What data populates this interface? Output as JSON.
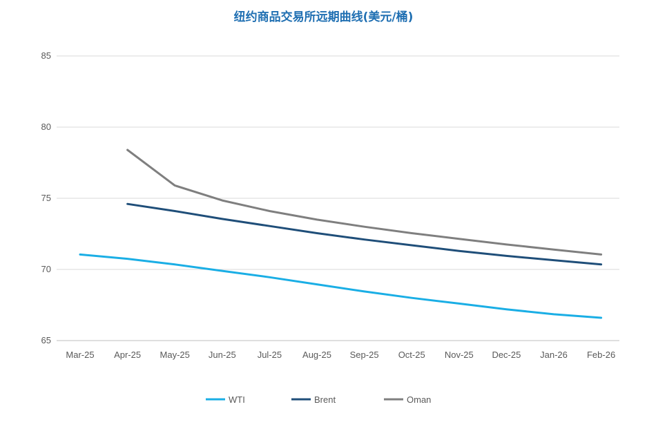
{
  "chart_data": {
    "type": "line",
    "title": "纽约商品交易所远期曲线(美元/桶)",
    "xlabel": "",
    "ylabel": "",
    "categories": [
      "Mar-25",
      "Apr-25",
      "May-25",
      "Jun-25",
      "Jul-25",
      "Aug-25",
      "Sep-25",
      "Oct-25",
      "Nov-25",
      "Dec-25",
      "Jan-26",
      "Feb-26"
    ],
    "ylim": [
      65,
      85
    ],
    "yticks": [
      65,
      70,
      75,
      80,
      85
    ],
    "grid": true,
    "legend_position": "bottom",
    "series": [
      {
        "name": "WTI",
        "color": "#1aaee5",
        "values": [
          71.05,
          70.75,
          70.35,
          69.9,
          69.45,
          68.95,
          68.45,
          68.0,
          67.6,
          67.2,
          66.85,
          66.6
        ]
      },
      {
        "name": "Brent",
        "color": "#1f4e79",
        "values": [
          null,
          74.6,
          74.1,
          73.55,
          73.05,
          72.55,
          72.1,
          71.7,
          71.3,
          70.95,
          70.65,
          70.35
        ]
      },
      {
        "name": "Oman",
        "color": "#7f7f7f",
        "values": [
          null,
          78.4,
          75.9,
          74.85,
          74.1,
          73.5,
          73.0,
          72.55,
          72.15,
          71.75,
          71.4,
          71.05
        ]
      }
    ]
  }
}
